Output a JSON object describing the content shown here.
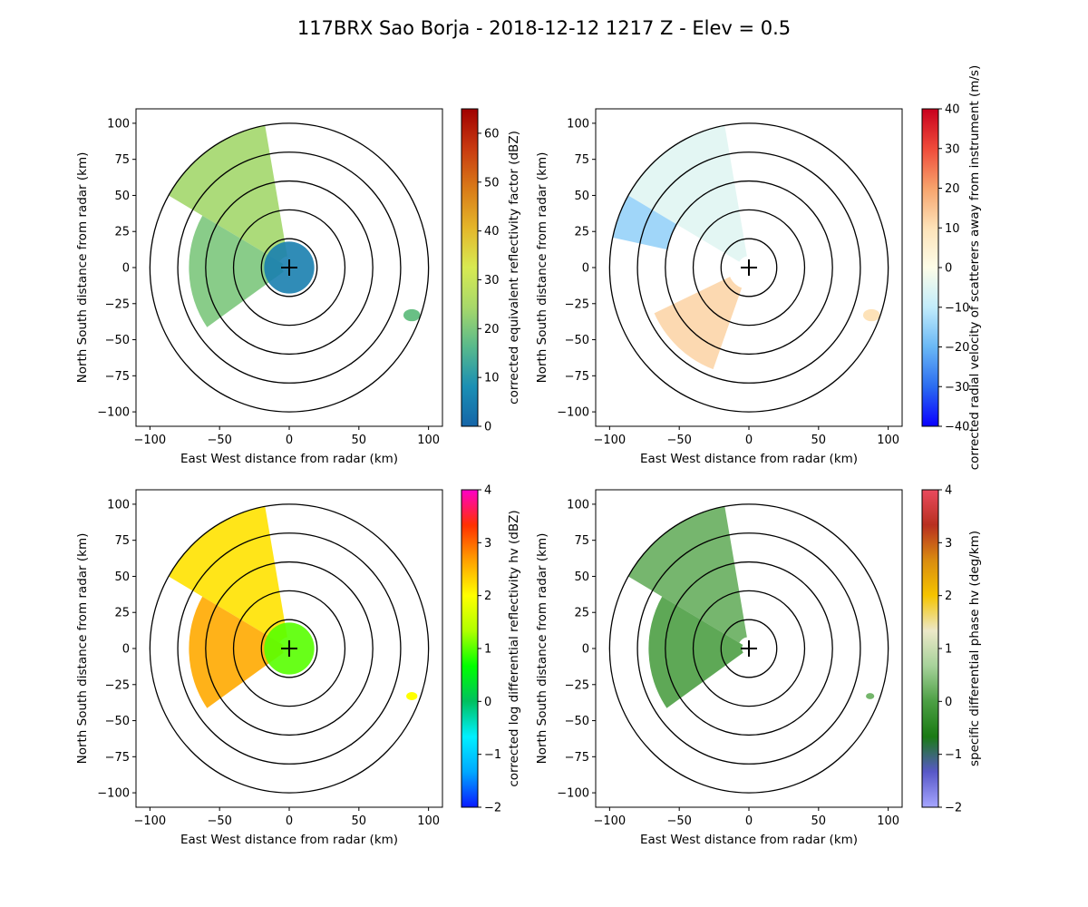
{
  "figure": {
    "suptitle": "117BRX Sao Borja - 2018-12-12 1217 Z -  Elev = 0.5"
  },
  "chart_data": [
    {
      "type": "heatmap",
      "title": "",
      "xlabel": "East West distance from radar (km)",
      "ylabel": "North South distance from radar (km)",
      "xlim": [
        -110,
        110
      ],
      "ylim": [
        -110,
        110
      ],
      "xticks": [
        -100,
        -50,
        0,
        50,
        100
      ],
      "yticks": [
        -100,
        -75,
        -50,
        -25,
        0,
        25,
        50,
        75,
        100
      ],
      "range_rings_km": [
        20,
        40,
        60,
        80,
        100
      ],
      "colorbar": {
        "label": "corrected equivalent reflectivity factor (dBZ)",
        "min": 0,
        "max": 65,
        "ticks": [
          0,
          10,
          20,
          30,
          40,
          50,
          60
        ],
        "colors": [
          "#1565a8",
          "#1b8fb4",
          "#58b98c",
          "#a7d86a",
          "#d8ea52",
          "#e4b62a",
          "#d97a18",
          "#c83a10",
          "#a00000"
        ]
      },
      "echoes": [
        {
          "region": "northwest sector 15-100 km",
          "value": 24
        },
        {
          "region": "west-southwest sector",
          "value": 20
        },
        {
          "region": "near radar",
          "value": 5
        },
        {
          "region": "small cell east-southeast",
          "value": 18
        }
      ]
    },
    {
      "type": "heatmap",
      "title": "",
      "xlabel": "East West distance from radar (km)",
      "ylabel": "North South distance from radar (km)",
      "xlim": [
        -110,
        110
      ],
      "ylim": [
        -110,
        110
      ],
      "xticks": [
        -100,
        -50,
        0,
        50,
        100
      ],
      "yticks": [
        -100,
        -75,
        -50,
        -25,
        0,
        25,
        50,
        75,
        100
      ],
      "range_rings_km": [
        20,
        40,
        60,
        80,
        100
      ],
      "colorbar": {
        "label": "corrected radial velocity of scatterers away from instrument (m/s)",
        "min": -40,
        "max": 40,
        "ticks": [
          -40,
          -30,
          -20,
          -10,
          0,
          10,
          20,
          30,
          40
        ],
        "colors": [
          "#0a00ff",
          "#2b6cf0",
          "#6ab8f5",
          "#c2ecfb",
          "#fdfde8",
          "#fde2b8",
          "#f7a36c",
          "#ef4b3a",
          "#c8001e"
        ]
      },
      "echoes": [
        {
          "region": "northwest sector",
          "value": -5
        },
        {
          "region": "far northwest edge",
          "value": -15
        },
        {
          "region": "southwest sector",
          "value": 12
        },
        {
          "region": "small cell east-southeast",
          "value": 10
        }
      ]
    },
    {
      "type": "heatmap",
      "title": "",
      "xlabel": "East West distance from radar (km)",
      "ylabel": "North South distance from radar (km)",
      "xlim": [
        -110,
        110
      ],
      "ylim": [
        -110,
        110
      ],
      "xticks": [
        -100,
        -50,
        0,
        50,
        100
      ],
      "yticks": [
        -100,
        -75,
        -50,
        -25,
        0,
        25,
        50,
        75,
        100
      ],
      "range_rings_km": [
        20,
        40,
        60,
        80,
        100
      ],
      "colorbar": {
        "label": "corrected log differential reflectivity hv (dBZ)",
        "min": -2,
        "max": 4,
        "ticks": [
          -2,
          -1,
          0,
          1,
          2,
          3,
          4
        ],
        "colors": [
          "#0a1aff",
          "#00a8ff",
          "#00f0ff",
          "#00c060",
          "#00ff00",
          "#b0ff00",
          "#ffff00",
          "#ffa000",
          "#ff3000",
          "#ff00c8"
        ]
      },
      "echoes": [
        {
          "region": "northwest sector",
          "value": 2.2
        },
        {
          "region": "west sector",
          "value": 2.6
        },
        {
          "region": "near radar",
          "value": 1.0
        },
        {
          "region": "small cell east-southeast",
          "value": 2.0
        }
      ]
    },
    {
      "type": "heatmap",
      "title": "",
      "xlabel": "East West distance from radar (km)",
      "ylabel": "North South distance from radar (km)",
      "xlim": [
        -110,
        110
      ],
      "ylim": [
        -110,
        110
      ],
      "xticks": [
        -100,
        -50,
        0,
        50,
        100
      ],
      "yticks": [
        -100,
        -75,
        -50,
        -25,
        0,
        25,
        50,
        75,
        100
      ],
      "range_rings_km": [
        20,
        40,
        60,
        80,
        100
      ],
      "colorbar": {
        "label": "specific differential phase hv (deg/km)",
        "min": -2,
        "max": 4,
        "ticks": [
          -2,
          -1,
          0,
          1,
          2,
          3,
          4
        ],
        "colors": [
          "#a6a6ff",
          "#5858c8",
          "#1a7a14",
          "#4c9f44",
          "#a6d29a",
          "#ece8c8",
          "#f5c400",
          "#d98c10",
          "#b83020",
          "#ea4a5e"
        ]
      },
      "echoes": [
        {
          "region": "northwest sector",
          "value": 0.2
        },
        {
          "region": "west-southwest sector",
          "value": 0.0
        },
        {
          "region": "small cell east-southeast",
          "value": 0.3
        }
      ]
    }
  ]
}
